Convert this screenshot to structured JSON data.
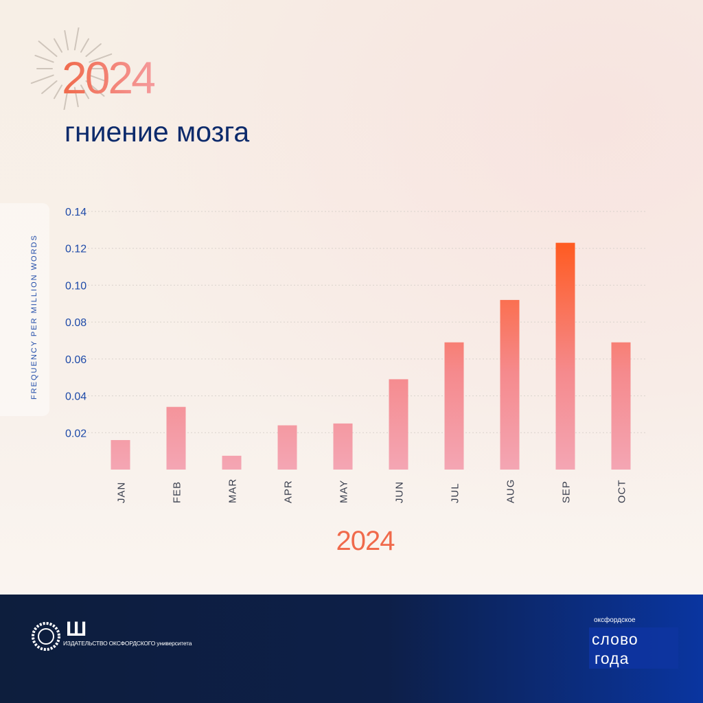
{
  "header": {
    "year": "2024",
    "word": "гниение мозга"
  },
  "chart_data": {
    "type": "bar",
    "ylabel": "FREQUENCY PER MILLION WORDS",
    "xlabel": "2024",
    "categories": [
      "JAN",
      "FEB",
      "MAR",
      "APR",
      "MAY",
      "JUN",
      "JUL",
      "AUG",
      "SEP",
      "OCT"
    ],
    "values": [
      0.016,
      0.034,
      0.0075,
      0.024,
      0.025,
      0.049,
      0.069,
      0.092,
      0.123,
      0.069
    ],
    "ylim": [
      0,
      0.14
    ],
    "yticks": [
      0.02,
      0.04,
      0.06,
      0.08,
      0.1,
      0.12,
      0.14
    ],
    "ytick_labels": [
      "0.02",
      "0.04",
      "0.06",
      "0.08",
      "0.10",
      "0.12",
      "0.14"
    ],
    "grid": true,
    "colors": {
      "low": "#f4a9b8",
      "high": "#ff5a1f",
      "tick_text": "#1e4aa8",
      "category_text": "#3a3f4e"
    }
  },
  "footer": {
    "logo_mark": "Ш",
    "publisher": "ИЗДАТЕЛЬСТВО ОКСФОРДСКОГО университета",
    "woty_small": "оксфордское",
    "woty_line1": "слово",
    "woty_line2": "года"
  }
}
